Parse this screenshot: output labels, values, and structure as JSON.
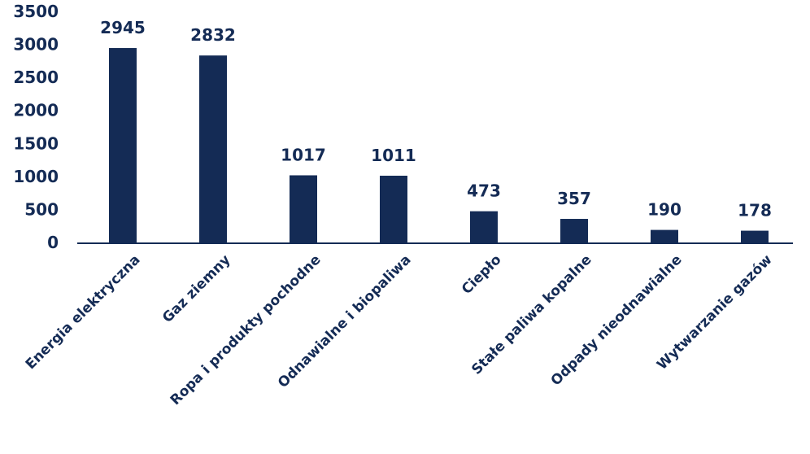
{
  "colors": {
    "bar": "#142b55",
    "text": "#142b55",
    "axis": "#142b55",
    "background": "#ffffff"
  },
  "chart_data": {
    "type": "bar",
    "categories": [
      "Energia elektryczna",
      "Gaz ziemny",
      "Ropa i produkty pochodne",
      "Odnawialne i biopaliwa",
      "Ciepło",
      "Stałe paliwa kopalne",
      "Odpady nieodnawialne",
      "Wytwarzanie gazów"
    ],
    "values": [
      2945,
      2832,
      1017,
      1011,
      473,
      357,
      190,
      178
    ],
    "data_labels": [
      "2945",
      "2832",
      "1017",
      "1011",
      "473",
      "357",
      "190",
      "178"
    ],
    "yticks": [
      0,
      500,
      1000,
      1500,
      2000,
      2500,
      3000,
      3500
    ],
    "ylim": [
      0,
      3500
    ],
    "title": "",
    "xlabel": "",
    "ylabel": "",
    "grid": false,
    "legend": "none"
  }
}
